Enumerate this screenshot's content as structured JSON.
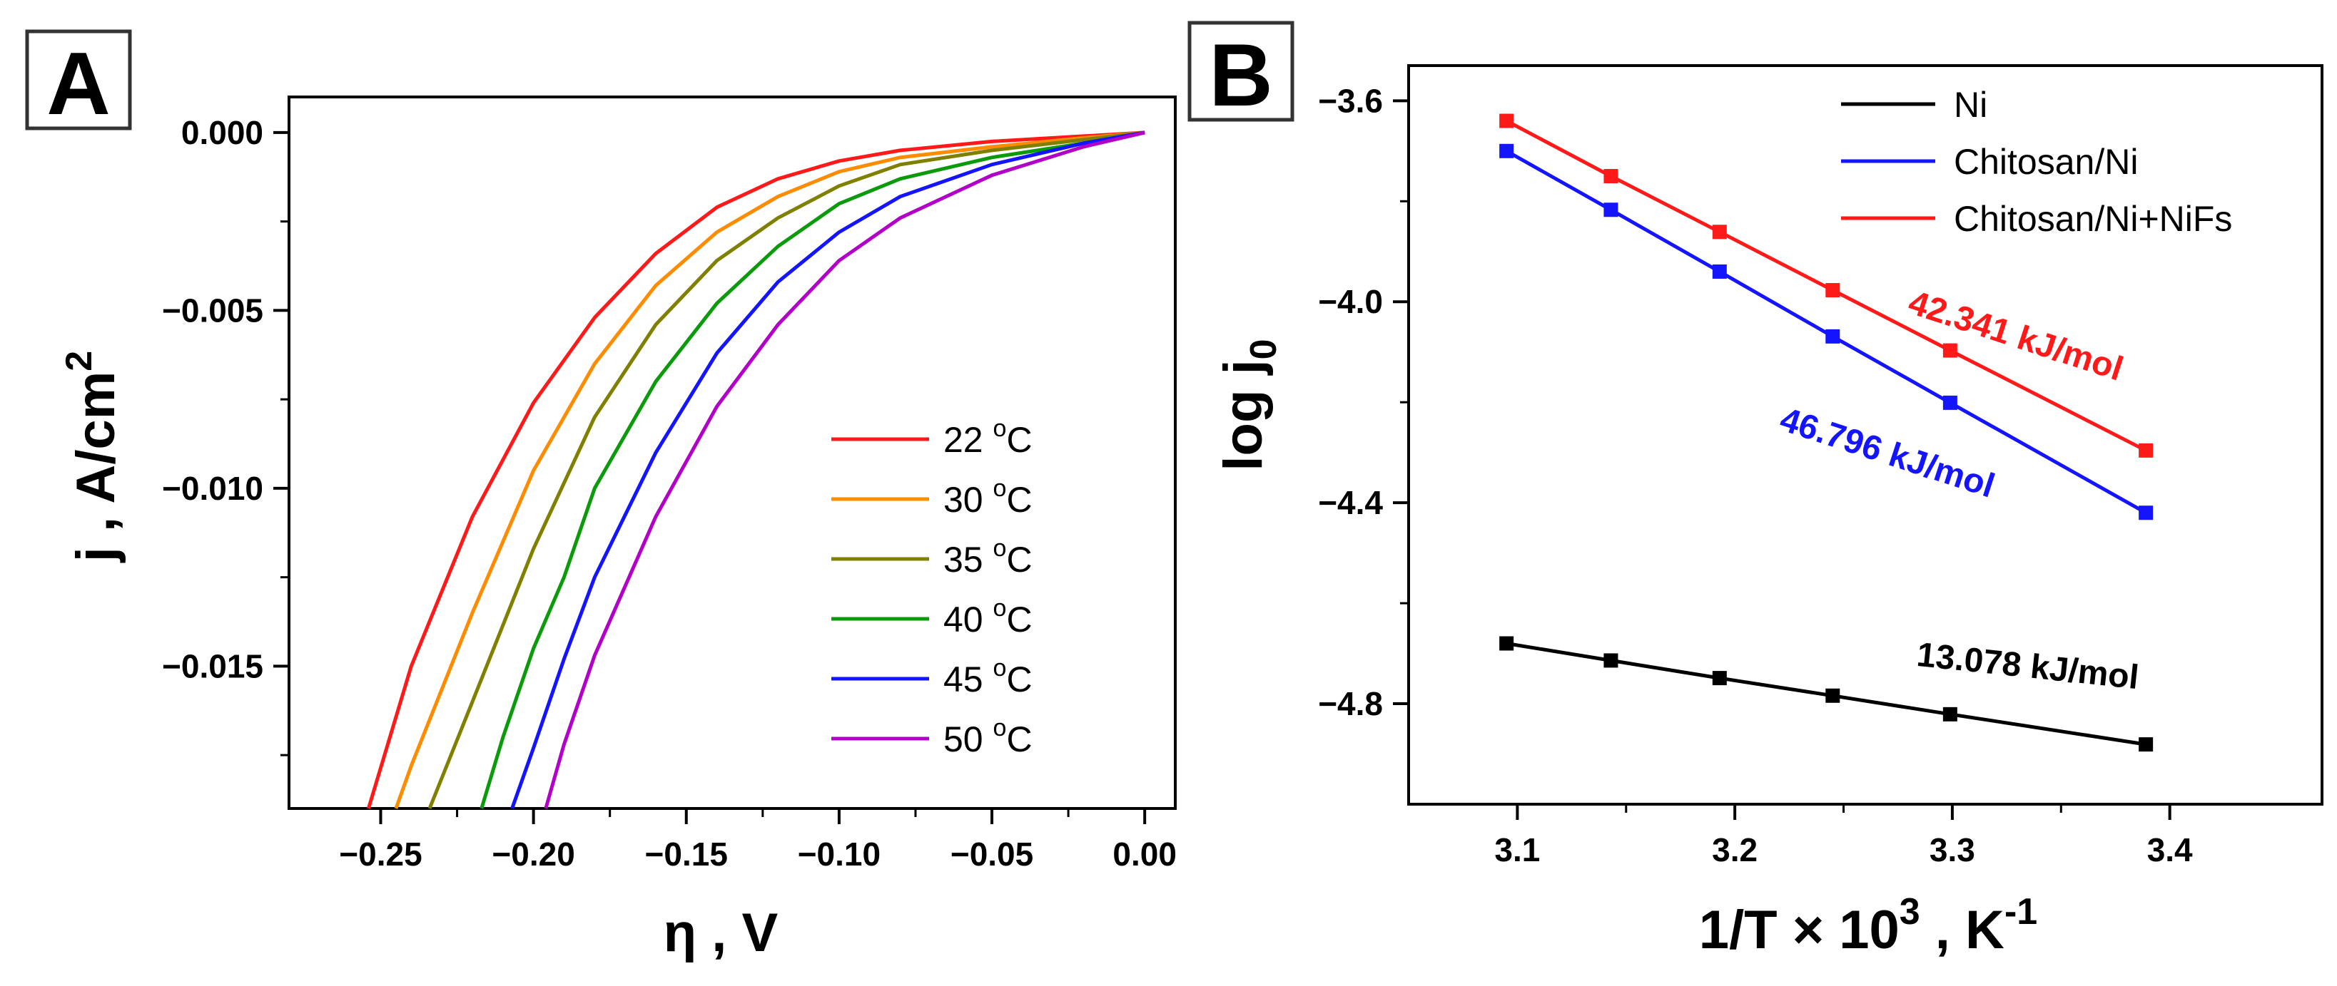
{
  "chart_data": [
    {
      "panel": "A",
      "type": "line",
      "xlabel": "η , V",
      "ylabel": "j , A/cm",
      "ylabel_sup": "2",
      "xlim": [
        -0.28,
        0.01
      ],
      "ylim": [
        -0.019,
        0.001
      ],
      "xticks": [
        -0.25,
        -0.2,
        -0.15,
        -0.1,
        -0.05,
        0.0
      ],
      "xtick_labels": [
        "−0.25",
        "−0.20",
        "−0.15",
        "−0.10",
        "−0.05",
        "0.00"
      ],
      "yticks": [
        0.0,
        -0.005,
        -0.01,
        -0.015
      ],
      "ytick_labels": [
        "0.000",
        "−0.005",
        "−0.010",
        "−0.015"
      ],
      "legend_position": "center-right",
      "series": [
        {
          "name": "22 °C",
          "label": "22",
          "unit": "C",
          "color": "#ff1a1a",
          "x": [
            0.0,
            -0.02,
            -0.05,
            -0.08,
            -0.1,
            -0.12,
            -0.14,
            -0.16,
            -0.18,
            -0.2,
            -0.22,
            -0.24,
            -0.254
          ],
          "y": [
            0.0,
            -0.0001,
            -0.00025,
            -0.0005,
            -0.0008,
            -0.0013,
            -0.0021,
            -0.0034,
            -0.0052,
            -0.0076,
            -0.0108,
            -0.015,
            -0.019
          ]
        },
        {
          "name": "30 °C",
          "label": "30",
          "unit": "C",
          "color": "#ff8c00",
          "x": [
            0.0,
            -0.02,
            -0.05,
            -0.08,
            -0.1,
            -0.12,
            -0.14,
            -0.16,
            -0.18,
            -0.2,
            -0.22,
            -0.24,
            -0.245
          ],
          "y": [
            0.0,
            -0.00015,
            -0.0004,
            -0.0007,
            -0.0011,
            -0.0018,
            -0.0028,
            -0.0043,
            -0.0065,
            -0.0095,
            -0.0135,
            -0.0178,
            -0.019
          ]
        },
        {
          "name": "35 °C",
          "label": "35",
          "unit": "C",
          "color": "#808000",
          "x": [
            0.0,
            -0.02,
            -0.05,
            -0.08,
            -0.1,
            -0.12,
            -0.14,
            -0.16,
            -0.18,
            -0.2,
            -0.22,
            -0.234
          ],
          "y": [
            0.0,
            -0.0002,
            -0.0005,
            -0.0009,
            -0.0015,
            -0.0024,
            -0.0036,
            -0.0054,
            -0.008,
            -0.0117,
            -0.016,
            -0.019
          ]
        },
        {
          "name": "40 °C",
          "label": "40",
          "unit": "C",
          "color": "#0a9a0a",
          "x": [
            0.0,
            -0.02,
            -0.05,
            -0.08,
            -0.1,
            -0.12,
            -0.14,
            -0.16,
            -0.18,
            -0.19,
            -0.2,
            -0.21,
            -0.217
          ],
          "y": [
            0.0,
            -0.0003,
            -0.0007,
            -0.0013,
            -0.002,
            -0.0032,
            -0.0048,
            -0.007,
            -0.01,
            -0.0125,
            -0.0145,
            -0.017,
            -0.019
          ]
        },
        {
          "name": "45 °C",
          "label": "45",
          "unit": "C",
          "color": "#1414ff",
          "x": [
            0.0,
            -0.02,
            -0.05,
            -0.08,
            -0.1,
            -0.12,
            -0.14,
            -0.16,
            -0.18,
            -0.19,
            -0.2,
            -0.207
          ],
          "y": [
            0.0,
            -0.0003,
            -0.0009,
            -0.0018,
            -0.0028,
            -0.0042,
            -0.0062,
            -0.009,
            -0.0125,
            -0.0148,
            -0.0173,
            -0.019
          ]
        },
        {
          "name": "50 °C",
          "label": "50",
          "unit": "C",
          "color": "#b300c8",
          "x": [
            0.0,
            -0.02,
            -0.05,
            -0.08,
            -0.1,
            -0.12,
            -0.14,
            -0.16,
            -0.18,
            -0.19,
            -0.196
          ],
          "y": [
            0.0,
            -0.0004,
            -0.0012,
            -0.0024,
            -0.0036,
            -0.0054,
            -0.0077,
            -0.0108,
            -0.0147,
            -0.0172,
            -0.019
          ]
        }
      ]
    },
    {
      "panel": "B",
      "type": "line",
      "xlabel": "1/T × 10",
      "xlabel_sup": "3",
      "xlabel_unit": "K",
      "xlabel_unit_sup": "-1",
      "ylabel": "log j",
      "ylabel_sub": "0",
      "xlim": [
        3.05,
        3.47
      ],
      "ylim": [
        -5.0,
        -3.53
      ],
      "xticks": [
        3.1,
        3.2,
        3.3,
        3.4
      ],
      "xtick_labels": [
        "3.1",
        "3.2",
        "3.3",
        "3.4"
      ],
      "yticks": [
        -3.6,
        -4.0,
        -4.4,
        -4.8
      ],
      "ytick_labels": [
        "−3.6",
        "−4.0",
        "−4.4",
        "−4.8"
      ],
      "legend_position": "top-right",
      "marker": "square",
      "series": [
        {
          "name": "Ni",
          "color": "#000000",
          "x": [
            3.095,
            3.143,
            3.193,
            3.245,
            3.299,
            3.389
          ],
          "y": [
            -4.68,
            -4.714,
            -4.749,
            -4.784,
            -4.821,
            -4.881
          ],
          "annotation": "13.078 kJ/mol"
        },
        {
          "name": "Chitosan/Ni",
          "color": "#1414ff",
          "x": [
            3.095,
            3.143,
            3.193,
            3.245,
            3.299,
            3.389
          ],
          "y": [
            -3.7,
            -3.817,
            -3.94,
            -4.069,
            -4.201,
            -4.42
          ],
          "annotation": "46.796 kJ/mol"
        },
        {
          "name": "Chitosan/Ni+NiFs",
          "color": "#ff1a1a",
          "x": [
            3.095,
            3.143,
            3.193,
            3.245,
            3.299,
            3.389
          ],
          "y": [
            -3.64,
            -3.75,
            -3.861,
            -3.977,
            -4.097,
            -4.296
          ],
          "annotation": "42.341 kJ/mol"
        }
      ]
    }
  ]
}
